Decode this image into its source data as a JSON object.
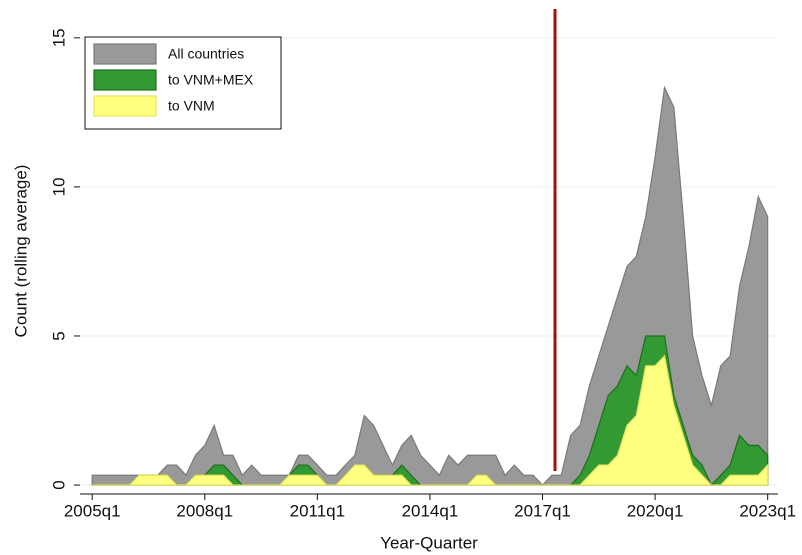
{
  "chart_data": {
    "type": "area",
    "xlabel": "Year-Quarter",
    "ylabel": "Count (rolling average)",
    "x": [
      180,
      181,
      182,
      183,
      184,
      185,
      186,
      187,
      188,
      189,
      190,
      191,
      192,
      193,
      194,
      195,
      196,
      197,
      198,
      199,
      200,
      201,
      202,
      203,
      204,
      205,
      206,
      207,
      208,
      209,
      210,
      211,
      212,
      213,
      214,
      215,
      216,
      217,
      218,
      219,
      220,
      221,
      222,
      223,
      224,
      225,
      226,
      227,
      228,
      229,
      230,
      231,
      232,
      233,
      234,
      235,
      236,
      237,
      238,
      239,
      240,
      241,
      242,
      243,
      244,
      245,
      246,
      247,
      248,
      249,
      250,
      251,
      252
    ],
    "series": [
      {
        "name": "All countries",
        "color": "#999999",
        "edge": "#7a7a7a",
        "values": [
          0.33,
          0.33,
          0.33,
          0.33,
          0.33,
          0.33,
          0.33,
          0.33,
          0.67,
          0.67,
          0.33,
          1,
          1.33,
          2,
          1,
          1,
          0.33,
          0.67,
          0.33,
          0.33,
          0.33,
          0.33,
          1,
          1,
          0.67,
          0.33,
          0.33,
          0.67,
          1,
          2.33,
          2,
          1.33,
          0.67,
          1.33,
          1.67,
          1,
          0.67,
          0.33,
          1,
          0.67,
          1,
          1,
          1,
          1,
          0.33,
          0.67,
          0.33,
          0.33,
          0,
          0.33,
          0.33,
          1.67,
          2,
          3.33,
          4.33,
          5.33,
          6.33,
          7.33,
          7.67,
          9,
          11,
          13.33,
          12.67,
          9,
          5,
          3.67,
          2.67,
          4,
          4.33,
          6.67,
          8,
          9.67,
          9
        ]
      },
      {
        "name": "to VNM+MEX",
        "color": "#339933",
        "edge": "#1e6e1e",
        "values": [
          0,
          0,
          0,
          0,
          0,
          0.33,
          0.33,
          0.33,
          0.33,
          0,
          0,
          0.33,
          0.33,
          0.67,
          0.67,
          0.33,
          0,
          0,
          0,
          0,
          0,
          0.33,
          0.67,
          0.67,
          0.33,
          0,
          0,
          0.33,
          0.67,
          0.67,
          0.33,
          0.33,
          0.33,
          0.67,
          0.33,
          0,
          0,
          0,
          0,
          0,
          0,
          0.33,
          0.33,
          0,
          0,
          0,
          0,
          0,
          0,
          0,
          0,
          0,
          0.33,
          1,
          2,
          3,
          3.33,
          4,
          3.67,
          5,
          5,
          5,
          3,
          2,
          1,
          0.67,
          0,
          0.33,
          0.67,
          1.67,
          1.33,
          1.33,
          1
        ]
      },
      {
        "name": "to VNM",
        "color": "#ffff80",
        "edge": "#e6e65c",
        "values": [
          0,
          0,
          0,
          0,
          0,
          0.33,
          0.33,
          0.33,
          0.33,
          0,
          0,
          0.33,
          0.33,
          0.33,
          0.33,
          0,
          0,
          0,
          0,
          0,
          0,
          0.33,
          0.33,
          0.33,
          0.33,
          0,
          0,
          0.33,
          0.67,
          0.67,
          0.33,
          0.33,
          0.33,
          0.33,
          0,
          0,
          0,
          0,
          0,
          0,
          0,
          0.33,
          0.33,
          0,
          0,
          0,
          0,
          0,
          0,
          0,
          0,
          0,
          0,
          0.33,
          0.67,
          0.67,
          1,
          2,
          2.33,
          4,
          4,
          4.33,
          2.67,
          1.67,
          0.67,
          0.33,
          0,
          0,
          0.33,
          0.33,
          0.33,
          0.33,
          0.67
        ]
      }
    ],
    "xlim": [
      178.7,
      253.1
    ],
    "ylim": [
      -0.3,
      16
    ],
    "xticks": [
      {
        "value": 180,
        "label": "2005q1"
      },
      {
        "value": 192,
        "label": "2008q1"
      },
      {
        "value": 204,
        "label": "2011q1"
      },
      {
        "value": 216,
        "label": "2014q1"
      },
      {
        "value": 228,
        "label": "2017q1"
      },
      {
        "value": 240,
        "label": "2020q1"
      },
      {
        "value": 252,
        "label": "2023q1"
      }
    ],
    "yticks": [
      0,
      5,
      10,
      15
    ],
    "xline": 229.33,
    "xline_color": "#a01010",
    "grid": true,
    "legend": "top-left"
  }
}
